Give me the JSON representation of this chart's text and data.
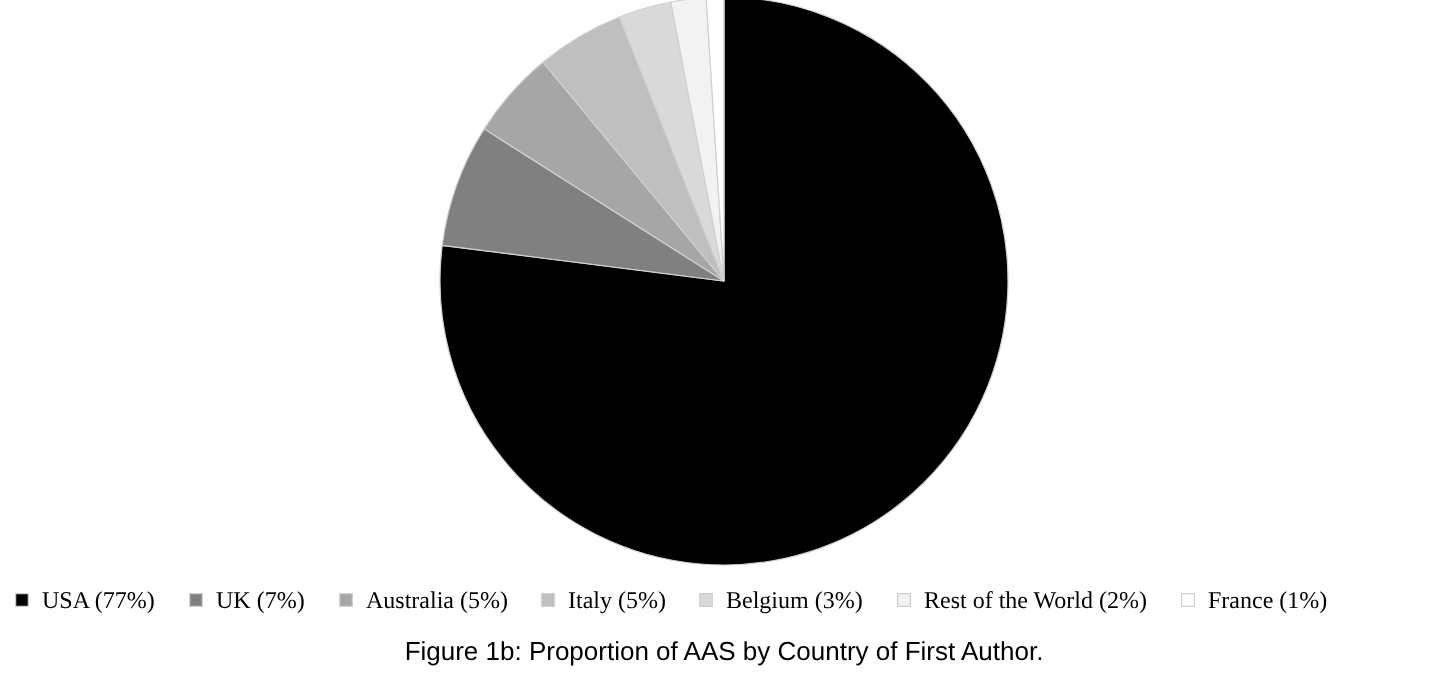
{
  "chart_data": {
    "type": "pie",
    "title": "Figure 1b: Proportion of AAS by Country of First Author.",
    "categories": [
      "USA (77%)",
      "UK (7%)",
      "Australia (5%)",
      "Italy (5%)",
      "Belgium (3%)",
      "Rest of the World (2%)",
      "France (1%)"
    ],
    "values": [
      77,
      7,
      5,
      5,
      3,
      2,
      1
    ],
    "colors": [
      "#000000",
      "#808080",
      "#a6a6a6",
      "#bfbfbf",
      "#d9d9d9",
      "#f2f2f2",
      "#ffffff"
    ],
    "legend": "bottom"
  }
}
